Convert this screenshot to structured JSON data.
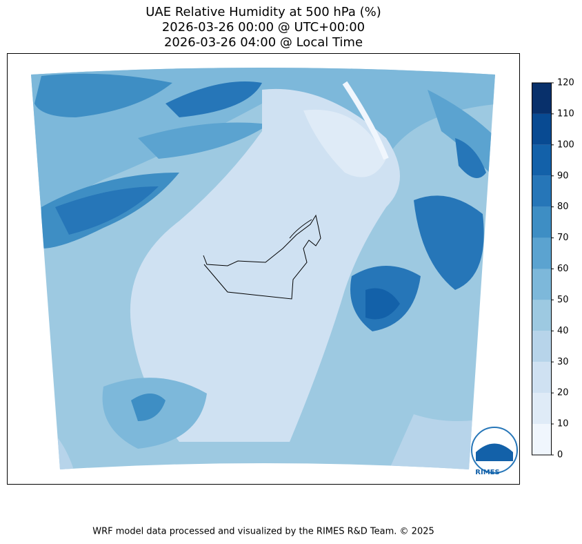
{
  "map": {
    "title": [
      "UAE Relative Humidity at 500 hPa (%)",
      "2026-03-26 00:00 @ UTC+00:00",
      "2026-03-26 04:00 @ Local Time"
    ],
    "colorbar": {
      "ticks": [
        0,
        10,
        20,
        30,
        40,
        50,
        60,
        70,
        80,
        90,
        100,
        110,
        120
      ],
      "colors": [
        "#f0f6fd",
        "#dfebf7",
        "#cfe1f2",
        "#b7d4ea",
        "#9dc9e1",
        "#7db8da",
        "#5ba3d0",
        "#3e8ec4",
        "#2676b8",
        "#1361a9",
        "#084a92",
        "#08306b"
      ]
    },
    "logo": "RIMES",
    "footer": "WRF model data processed and visualized by the RIMES R&D Team. © 2025"
  }
}
